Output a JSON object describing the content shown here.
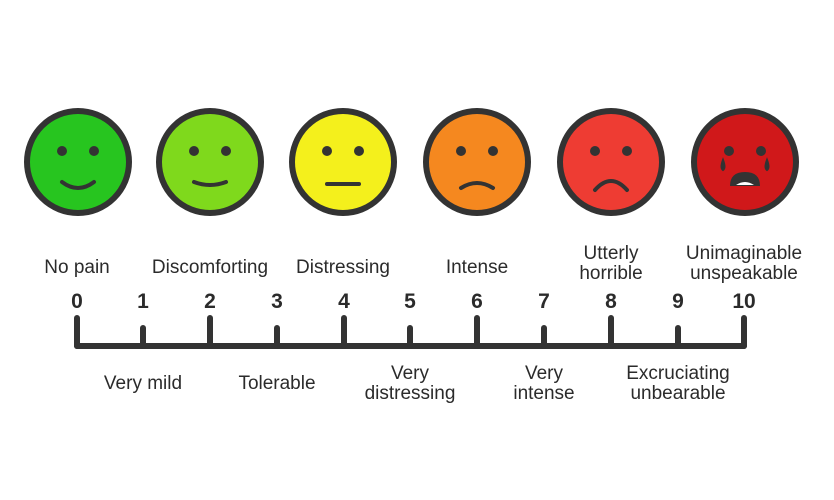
{
  "faces": [
    {
      "mood": "smile-big",
      "color": "#27c51f"
    },
    {
      "mood": "smile",
      "color": "#7fd91c"
    },
    {
      "mood": "neutral",
      "color": "#f4f01c"
    },
    {
      "mood": "frown",
      "color": "#f5881f"
    },
    {
      "mood": "frown-big",
      "color": "#ee3c33"
    },
    {
      "mood": "crying",
      "color": "#d0181a"
    }
  ],
  "scale": {
    "numbers": [
      "0",
      "1",
      "2",
      "3",
      "4",
      "5",
      "6",
      "7",
      "8",
      "9",
      "10"
    ]
  },
  "top_labels": [
    {
      "lines": [
        "No pain"
      ]
    },
    {
      "lines": [
        "Discomforting"
      ]
    },
    {
      "lines": [
        "Distressing"
      ]
    },
    {
      "lines": [
        "Intense"
      ]
    },
    {
      "lines": [
        "Utterly",
        "horrible"
      ]
    },
    {
      "lines": [
        "Unimaginable",
        "unspeakable"
      ]
    }
  ],
  "bottom_labels": [
    {
      "lines": [
        "Very mild"
      ]
    },
    {
      "lines": [
        "Tolerable"
      ]
    },
    {
      "lines": [
        "Very",
        "distressing"
      ]
    },
    {
      "lines": [
        "Very",
        "intense"
      ]
    },
    {
      "lines": [
        "Excruciating",
        "unbearable"
      ]
    }
  ]
}
